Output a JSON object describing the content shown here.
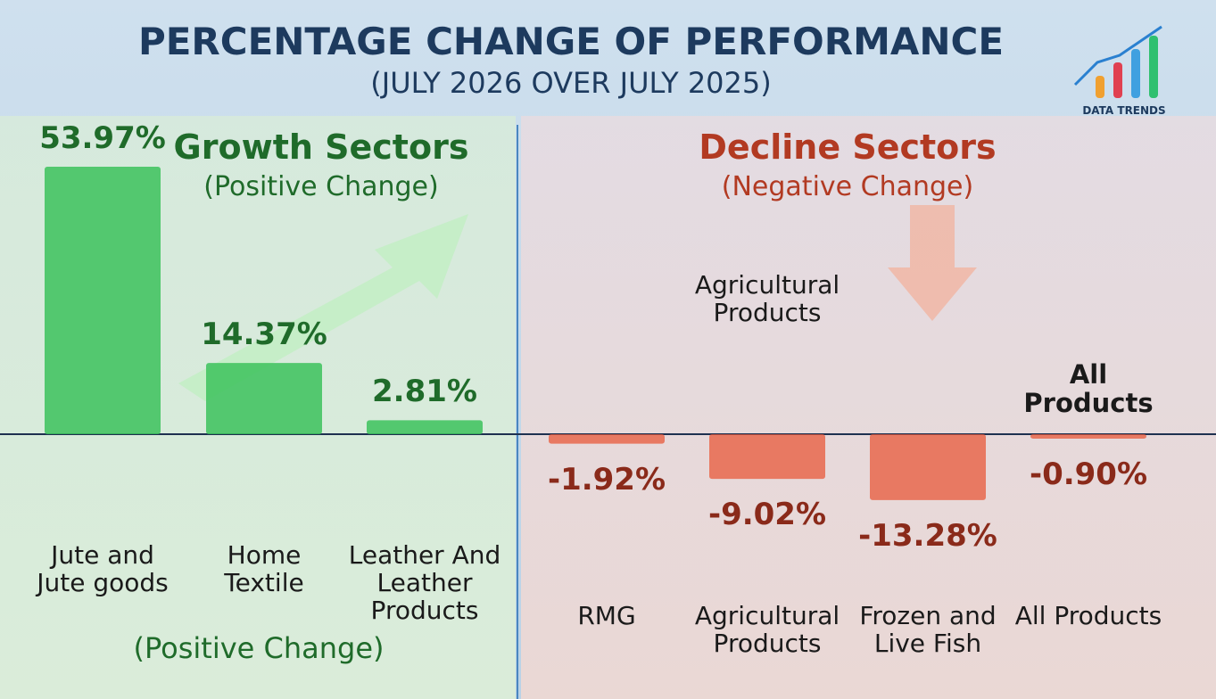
{
  "header": {
    "title": "PERCENTAGE CHANGE OF PERFORMANCE",
    "subtitle": "(JULY 2026 OVER JULY 2025)",
    "logo": "DATA TRENDS"
  },
  "growth": {
    "heading": "Growth Sectors",
    "subheading": "(Positive Change)",
    "footer": "(Positive Change)"
  },
  "decline": {
    "heading": "Decline Sectors",
    "subheading": "(Negative Change)"
  },
  "annotations": [
    "Agricultural Products",
    "All Products"
  ],
  "chart_data": {
    "type": "bar",
    "categories": [
      "Jute and Jute goods",
      "Home Textile",
      "Leather And Leather Products",
      "RMG",
      "Agricultural Products",
      "Frozen and Live Fish",
      "All Products"
    ],
    "values": [
      53.97,
      14.37,
      2.81,
      -1.92,
      -9.02,
      -13.28,
      -0.9
    ],
    "value_labels": [
      "53.97%",
      "14.37%",
      "2.81%",
      "-1.92%",
      "-9.02%",
      "-13.28%",
      "-0.90%"
    ],
    "positive_color": "#3cc25c",
    "negative_color": "#e8583a"
  }
}
